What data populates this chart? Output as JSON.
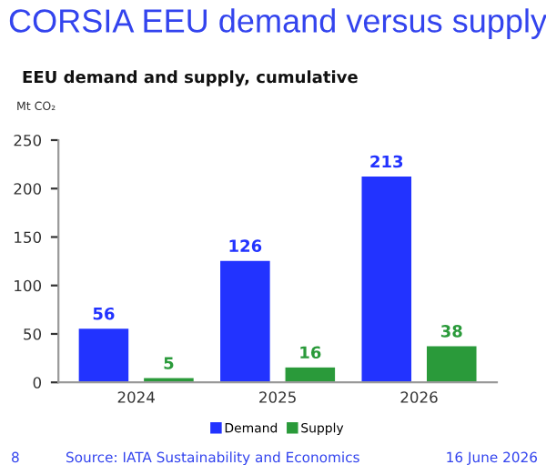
{
  "chart_data": {
    "type": "bar",
    "title": "CORSIA EEU demand versus supply",
    "subtitle": "EEU demand and supply, cumulative",
    "ylabel": "Mt CO₂",
    "categories": [
      "2024",
      "2025",
      "2026"
    ],
    "series": [
      {
        "name": "Demand",
        "color": "#2233ff",
        "values": [
          56,
          126,
          213
        ]
      },
      {
        "name": "Supply",
        "color": "#2a9a3a",
        "values": [
          5,
          16,
          38
        ]
      }
    ],
    "ylim": [
      0,
      250
    ],
    "yticks": [
      0,
      50,
      100,
      150,
      200,
      250
    ],
    "grid": false,
    "legend": "bottom",
    "data_labels": true,
    "annotations": [
      "8",
      "Source: IATA Sustainability and Economics",
      "16 June 2026"
    ]
  }
}
